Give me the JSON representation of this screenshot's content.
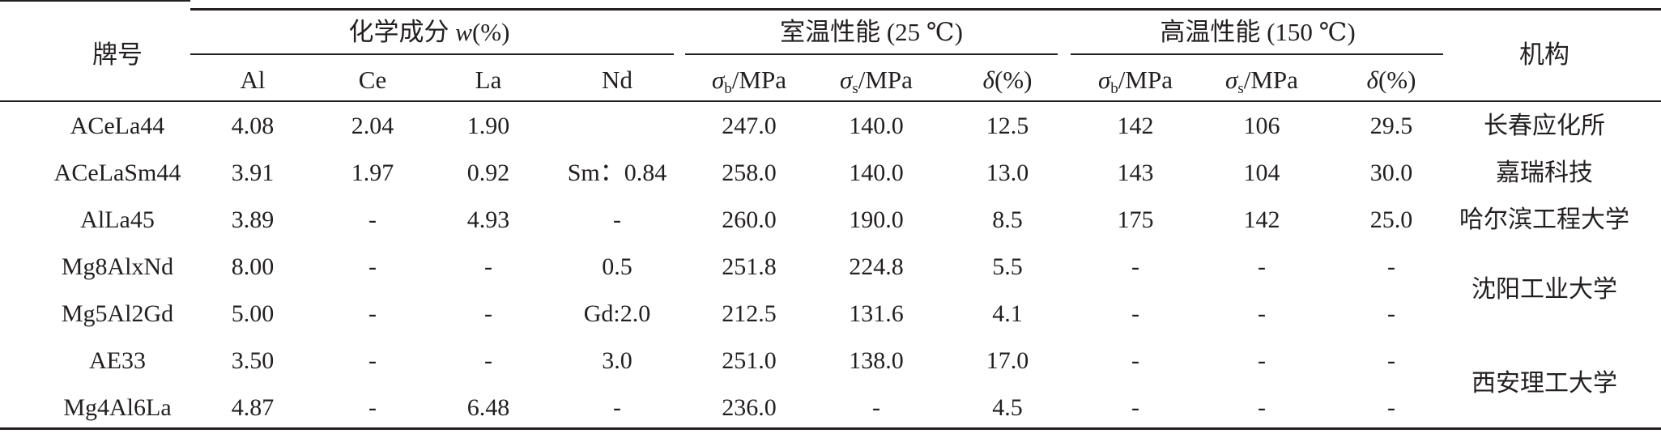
{
  "table": {
    "group_headers": {
      "grade": "牌号",
      "composition_prefix": "化学成分 ",
      "composition_var": "w",
      "composition_suffix": "(%)",
      "room_temp": "室温性能 (25 ℃)",
      "high_temp": "高温性能 (150 ℃)",
      "institution": "机构"
    },
    "sub_headers": {
      "al": "Al",
      "ce": "Ce",
      "la": "La",
      "nd": "Nd",
      "sigma": "σ",
      "sub_b": "b",
      "sub_s": "s",
      "unit_mpa": "/MPa",
      "delta": "δ",
      "pct": "(%)"
    },
    "rows": [
      [
        "ACeLa44",
        "4.08",
        "2.04",
        "1.90",
        "",
        "247.0",
        "140.0",
        "12.5",
        "142",
        "106",
        "29.5"
      ],
      [
        "ACeLaSm44",
        "3.91",
        "1.97",
        "0.92",
        "Sm：0.84",
        "258.0",
        "140.0",
        "13.0",
        "143",
        "104",
        "30.0"
      ],
      [
        "AlLa45",
        "3.89",
        "-",
        "4.93",
        "-",
        "260.0",
        "190.0",
        "8.5",
        "175",
        "142",
        "25.0"
      ],
      [
        "Mg8AlxNd",
        "8.00",
        "-",
        "-",
        "0.5",
        "251.8",
        "224.8",
        "5.5",
        "-",
        "-",
        "-"
      ],
      [
        "Mg5Al2Gd",
        "5.00",
        "-",
        "-",
        "Gd:2.0",
        "212.5",
        "131.6",
        "4.1",
        "-",
        "-",
        "-"
      ],
      [
        "AE33",
        "3.50",
        "-",
        "-",
        "3.0",
        "251.0",
        "138.0",
        "17.0",
        "-",
        "-",
        "-"
      ],
      [
        "Mg4Al6La",
        "4.87",
        "-",
        "6.48",
        "-",
        "236.0",
        "-",
        "4.5",
        "-",
        "-",
        "-"
      ]
    ],
    "institutions": [
      "长春应化所",
      "嘉瑞科技",
      "哈尔滨工程大学",
      "沈阳工业大学",
      "西安理工大学"
    ]
  }
}
